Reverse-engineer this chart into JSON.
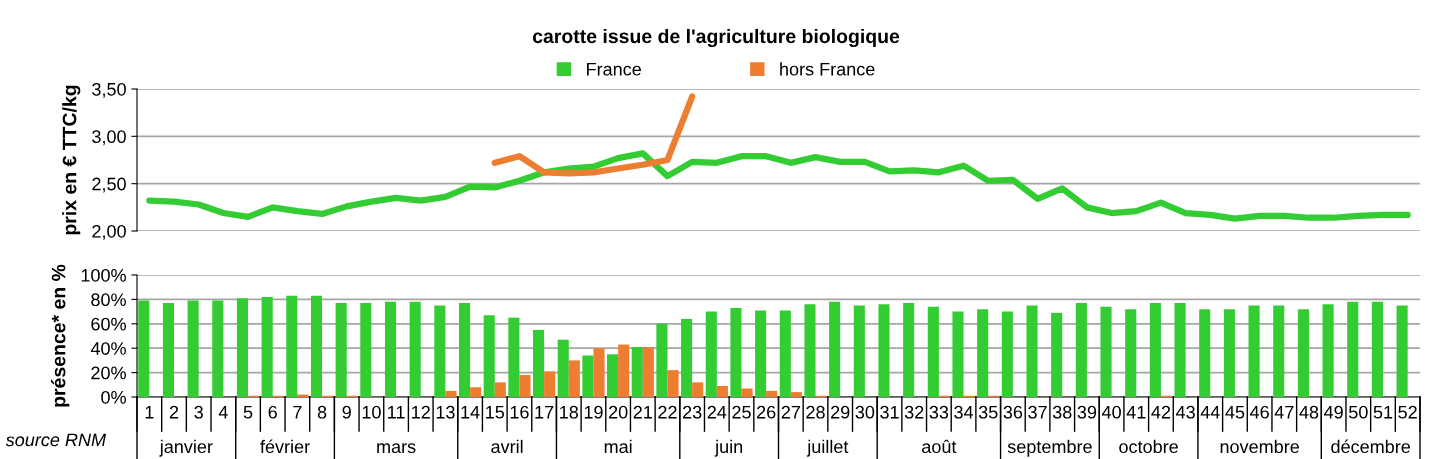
{
  "chart_data": [
    {
      "type": "line",
      "title": "carotte issue de l'agriculture biologique",
      "ylabel": "prix en € TTC/kg",
      "categories": [
        "1",
        "2",
        "3",
        "4",
        "5",
        "6",
        "7",
        "8",
        "9",
        "10",
        "11",
        "12",
        "13",
        "14",
        "15",
        "16",
        "17",
        "18",
        "19",
        "20",
        "21",
        "22",
        "23",
        "24",
        "25",
        "26",
        "27",
        "28",
        "29",
        "30",
        "31",
        "32",
        "33",
        "34",
        "35",
        "36",
        "37",
        "38",
        "39",
        "40",
        "41",
        "42",
        "43",
        "44",
        "45",
        "46",
        "47",
        "48",
        "49",
        "50",
        "51",
        "52"
      ],
      "series": [
        {
          "name": "France",
          "color": "#33cc33",
          "values": [
            2.32,
            2.31,
            2.28,
            2.19,
            2.15,
            2.25,
            2.21,
            2.18,
            2.26,
            2.31,
            2.35,
            2.32,
            2.36,
            2.47,
            2.46,
            2.53,
            2.62,
            2.66,
            2.68,
            2.77,
            2.82,
            2.58,
            2.73,
            2.72,
            2.79,
            2.79,
            2.72,
            2.78,
            2.73,
            2.73,
            2.63,
            2.64,
            2.62,
            2.69,
            2.53,
            2.54,
            2.34,
            2.45,
            2.25,
            2.19,
            2.21,
            2.3,
            2.19,
            2.17,
            2.13,
            2.16,
            2.16,
            2.14,
            2.14,
            2.16,
            2.17,
            2.17
          ]
        },
        {
          "name": "hors France",
          "color": "#ed7d31",
          "values": [
            null,
            null,
            null,
            null,
            null,
            null,
            null,
            null,
            null,
            null,
            null,
            null,
            null,
            null,
            2.72,
            2.79,
            2.62,
            2.61,
            2.62,
            2.66,
            2.7,
            2.75,
            3.42,
            null,
            null,
            null,
            null,
            null,
            null,
            null,
            null,
            null,
            null,
            null,
            null,
            null,
            null,
            null,
            null,
            null,
            null,
            null,
            null,
            null,
            null,
            null,
            null,
            null,
            null,
            null,
            null,
            null
          ]
        }
      ],
      "ylim": [
        2.0,
        3.5
      ],
      "yticks": [
        {
          "value": 2.0,
          "label": "2,00"
        },
        {
          "value": 2.5,
          "label": "2,50"
        },
        {
          "value": 3.0,
          "label": "3,00"
        },
        {
          "value": 3.5,
          "label": "3,50"
        }
      ],
      "grid": "y",
      "legend": "top",
      "tick_labels": "y",
      "line_style": "solid",
      "marker": "none"
    },
    {
      "type": "bar",
      "ylabel": "présence* en %",
      "categories": [
        "1",
        "2",
        "3",
        "4",
        "5",
        "6",
        "7",
        "8",
        "9",
        "10",
        "11",
        "12",
        "13",
        "14",
        "15",
        "16",
        "17",
        "18",
        "19",
        "20",
        "21",
        "22",
        "23",
        "24",
        "25",
        "26",
        "27",
        "28",
        "29",
        "30",
        "31",
        "32",
        "33",
        "34",
        "35",
        "36",
        "37",
        "38",
        "39",
        "40",
        "41",
        "42",
        "43",
        "44",
        "45",
        "46",
        "47",
        "48",
        "49",
        "50",
        "51",
        "52"
      ],
      "series": [
        {
          "color": "#33cc33",
          "values": [
            79,
            77,
            79,
            79,
            81,
            82,
            83,
            83,
            77,
            77,
            78,
            78,
            75,
            77,
            67,
            65,
            55,
            47,
            34,
            35,
            41,
            60,
            64,
            70,
            73,
            71,
            71,
            76,
            78,
            75,
            76,
            77,
            74,
            70,
            72,
            70,
            75,
            69,
            77,
            74,
            72,
            77,
            77,
            72,
            72,
            75,
            75,
            72,
            76,
            78,
            78,
            75
          ]
        },
        {
          "color": "#ed7d31",
          "values": [
            0,
            0,
            0,
            0,
            1,
            1,
            2,
            1,
            1,
            0,
            0,
            0,
            5,
            8,
            12,
            18,
            21,
            30,
            40,
            43,
            41,
            22,
            12,
            9,
            7,
            5,
            4,
            1,
            0,
            0,
            0,
            0,
            1,
            1,
            1,
            0,
            0,
            0,
            0,
            0,
            0,
            1,
            0,
            0,
            0,
            0,
            0,
            0,
            0,
            0,
            0,
            0
          ]
        }
      ],
      "ylim": [
        0,
        100
      ],
      "yticks": [
        {
          "value": 0,
          "label": "0%"
        },
        {
          "value": 20,
          "label": "20%"
        },
        {
          "value": 40,
          "label": "40%"
        },
        {
          "value": 60,
          "label": "60%"
        },
        {
          "value": 80,
          "label": "80%"
        },
        {
          "value": 100,
          "label": "100%"
        }
      ],
      "grid": "y",
      "annotations": [
        "janvier",
        "février",
        "mars",
        "avril",
        "mai",
        "juin",
        "juillet",
        "août",
        "septembre",
        "octobre",
        "novembre",
        "décembre",
        "source RNM"
      ]
    }
  ]
}
